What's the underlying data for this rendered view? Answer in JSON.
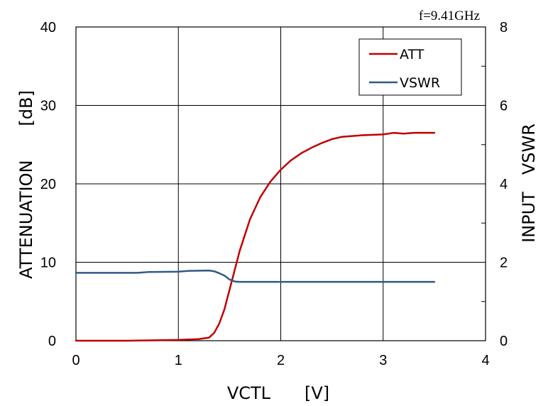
{
  "chart_data": {
    "type": "line",
    "annotation": "f=9.41GHz",
    "xlabel": "VCTL　　[V]",
    "ylabel": "ATTENUATION　　[dB]",
    "y2label": "INPUT　VSWR",
    "xlim": [
      0,
      4
    ],
    "ylim": [
      0,
      40
    ],
    "y2lim": [
      0,
      8
    ],
    "x_ticks": [
      "0",
      "1",
      "2",
      "3",
      "4"
    ],
    "y_ticks": [
      "0",
      "10",
      "20",
      "30",
      "40"
    ],
    "y2_ticks": [
      "0",
      "2",
      "4",
      "6",
      "8"
    ],
    "grid": true,
    "legend_position": "top-right",
    "series": [
      {
        "name": "ATT",
        "axis": "left",
        "color": "#c00000",
        "x": [
          0,
          0.5,
          1.0,
          1.2,
          1.3,
          1.35,
          1.4,
          1.45,
          1.5,
          1.55,
          1.6,
          1.7,
          1.8,
          1.9,
          2.0,
          2.1,
          2.2,
          2.3,
          2.4,
          2.5,
          2.6,
          2.8,
          3.0,
          3.1,
          3.2,
          3.3,
          3.5
        ],
        "y": [
          0,
          0,
          0.1,
          0.2,
          0.4,
          1.0,
          2.2,
          4.0,
          6.5,
          9.0,
          11.5,
          15.5,
          18.3,
          20.3,
          21.8,
          23.0,
          23.9,
          24.6,
          25.2,
          25.7,
          26.0,
          26.2,
          26.3,
          26.5,
          26.4,
          26.5,
          26.5
        ]
      },
      {
        "name": "VSWR",
        "axis": "right",
        "color": "#2f5a87",
        "x": [
          0,
          0.6,
          0.7,
          1.0,
          1.1,
          1.3,
          1.35,
          1.4,
          1.45,
          1.5,
          1.55,
          1.6,
          2.0,
          3.0,
          3.5
        ],
        "y": [
          1.73,
          1.73,
          1.75,
          1.76,
          1.78,
          1.79,
          1.77,
          1.72,
          1.66,
          1.56,
          1.51,
          1.5,
          1.5,
          1.5,
          1.5
        ]
      }
    ]
  }
}
